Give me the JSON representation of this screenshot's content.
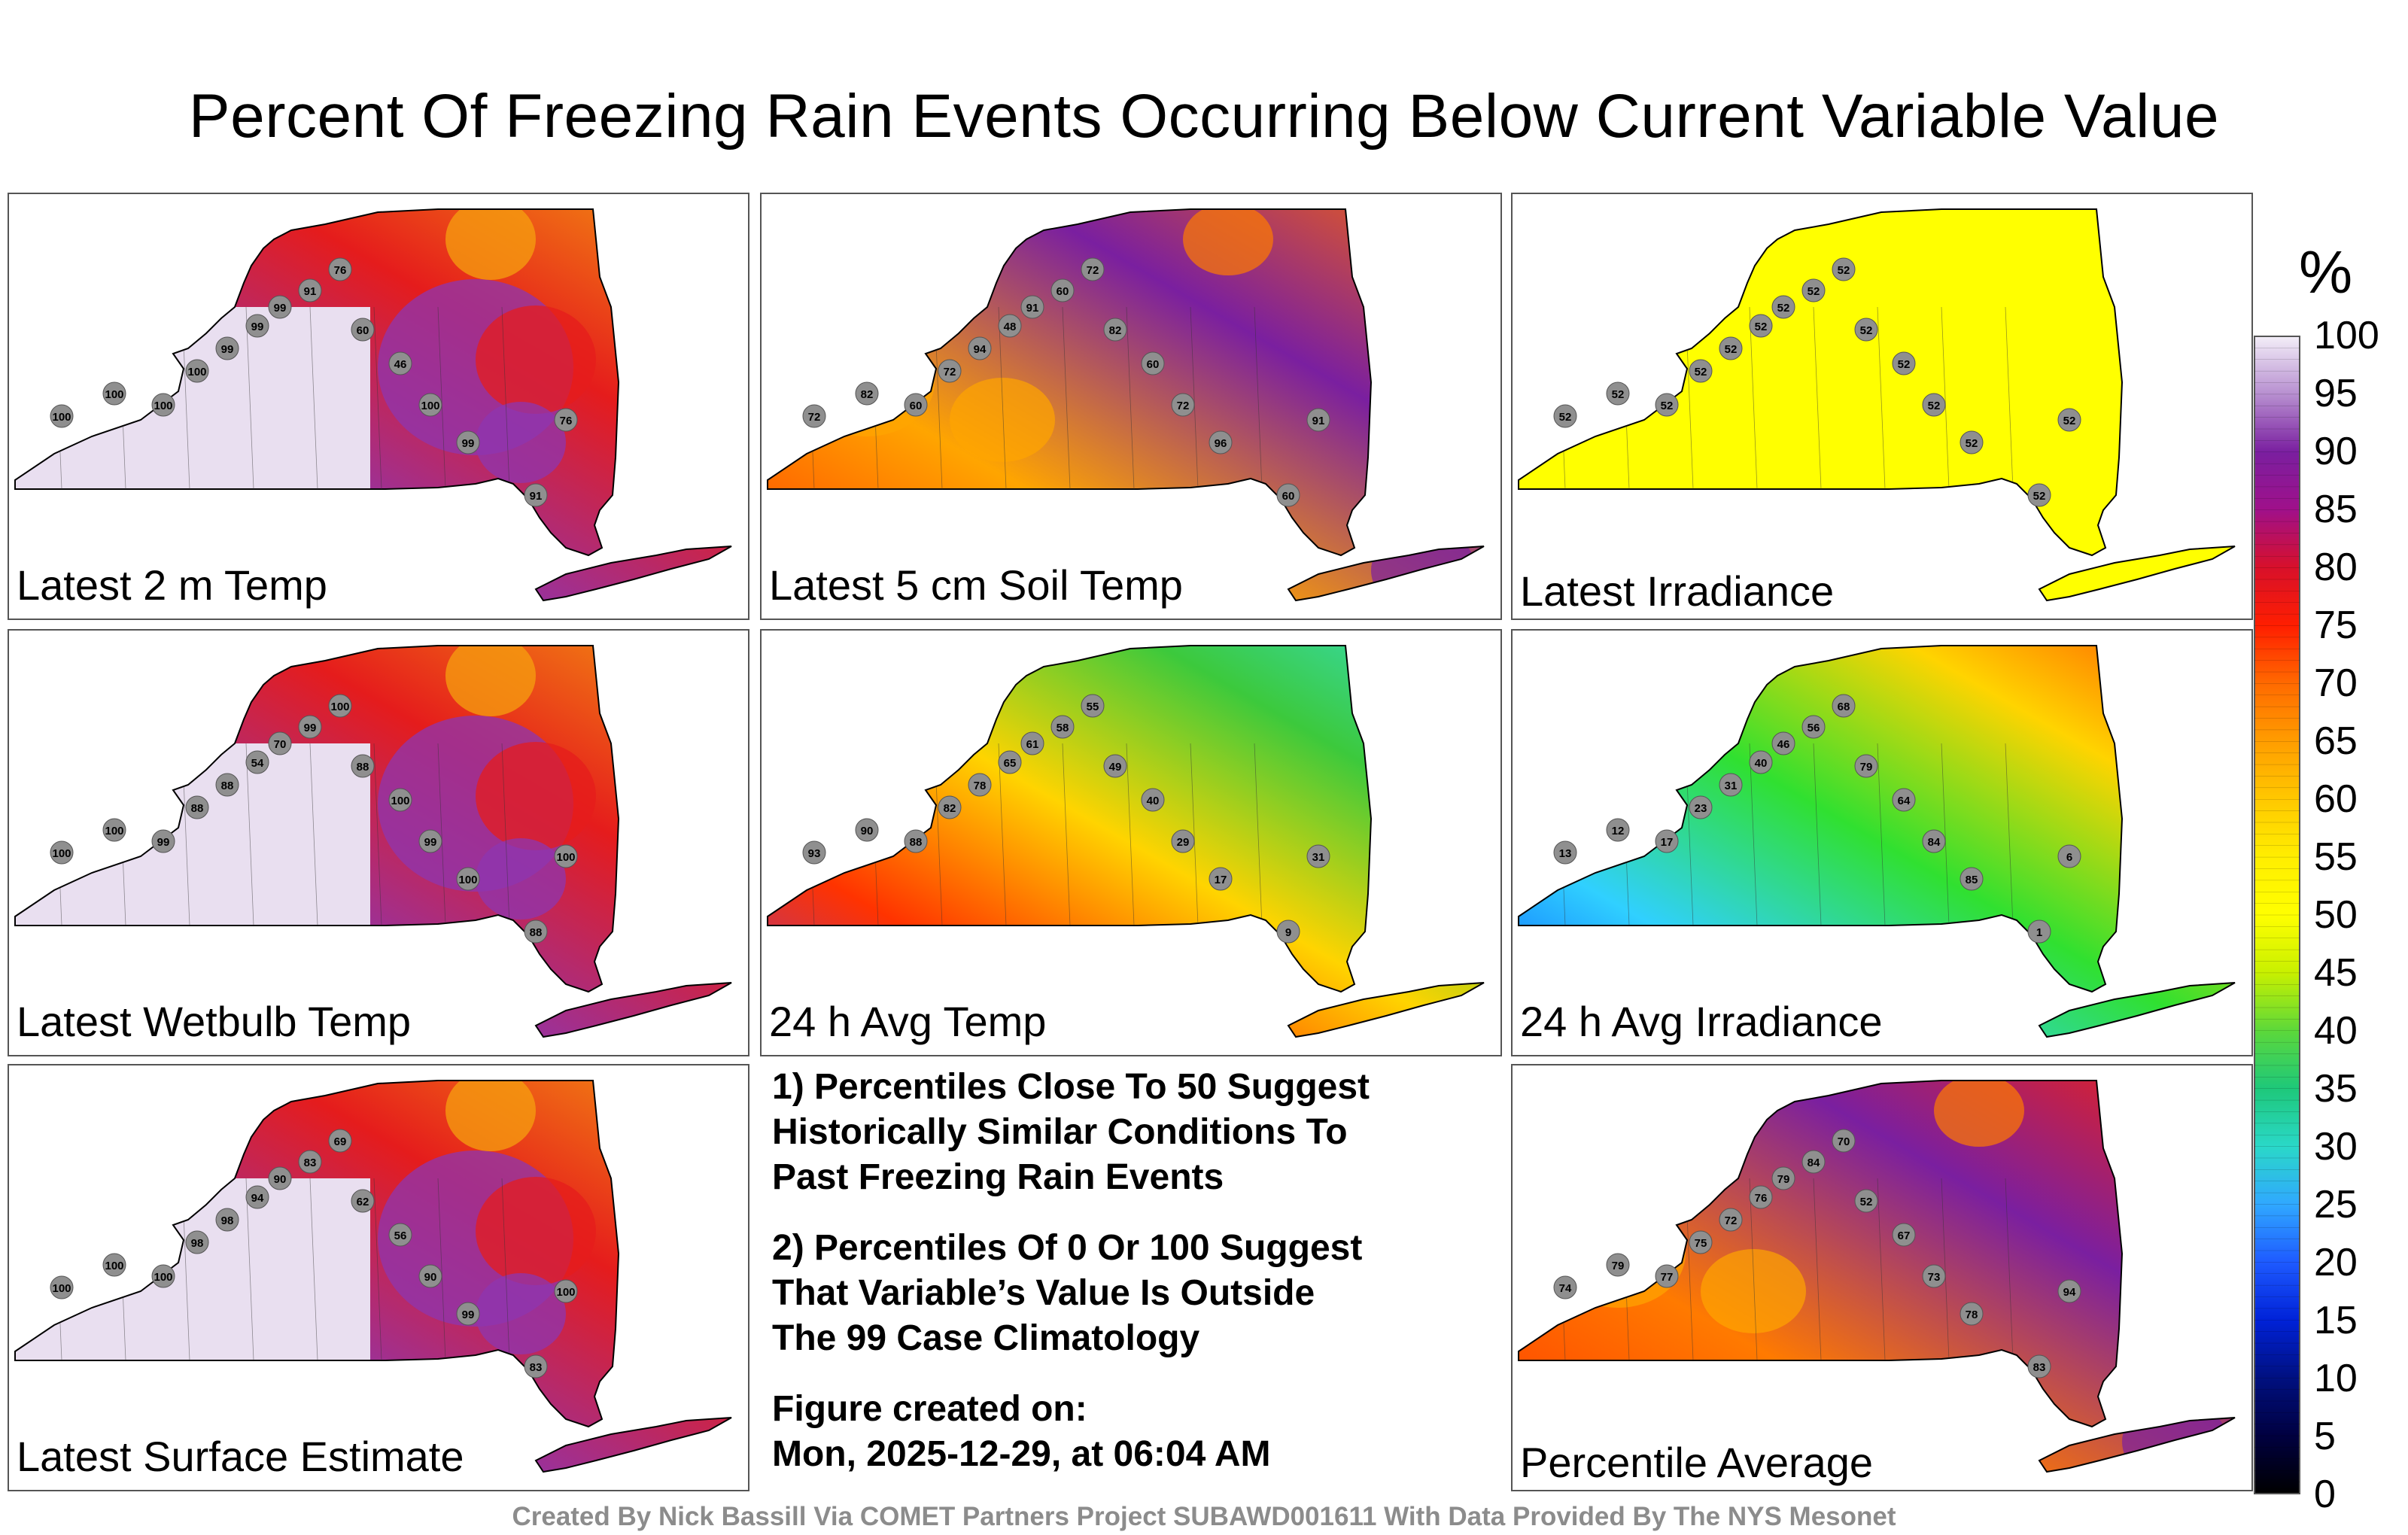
{
  "title": "Percent Of Freezing Rain Events Occurring Below Current Variable Value",
  "panels": [
    {
      "label": "Latest 2 m Temp",
      "scheme": "high",
      "colors": [
        "#e9dff0",
        "#8d35b0",
        "#e51c1c",
        "#f6a00f"
      ],
      "stations": [
        "100",
        "100",
        "100",
        "100",
        "99",
        "99",
        "99",
        "91",
        "76",
        "60",
        "46",
        "100",
        "99",
        "91",
        "76"
      ]
    },
    {
      "label": "Latest 5 cm Soil Temp",
      "scheme": "mixed",
      "colors": [
        "#ff3300",
        "#ffa500",
        "#7a1fa0",
        "#ff6a00"
      ],
      "stations": [
        "72",
        "82",
        "60",
        "72",
        "94",
        "48",
        "91",
        "60",
        "72",
        "82",
        "60",
        "72",
        "96",
        "60",
        "91"
      ]
    },
    {
      "label": "Latest Irradiance",
      "scheme": "flat",
      "colors": [
        "#ffff00"
      ],
      "stations": [
        "52",
        "52",
        "52",
        "52",
        "52",
        "52",
        "52",
        "52",
        "52",
        "52",
        "52",
        "52",
        "52",
        "52",
        "52"
      ]
    },
    {
      "label": "Latest Wetbulb Temp",
      "scheme": "high",
      "colors": [
        "#e9dff0",
        "#8d35b0",
        "#e51c1c",
        "#f6a00f"
      ],
      "stations": [
        "100",
        "100",
        "99",
        "88",
        "88",
        "54",
        "70",
        "99",
        "100",
        "88",
        "100",
        "99",
        "100",
        "88",
        "100"
      ]
    },
    {
      "label": "24 h Avg Temp",
      "scheme": "gradient",
      "colors": [
        "#8d35b0",
        "#ff3300",
        "#ffd400",
        "#3cc93c",
        "#35e0d0"
      ],
      "stations": [
        "93",
        "90",
        "88",
        "82",
        "78",
        "65",
        "61",
        "58",
        "55",
        "49",
        "40",
        "29",
        "17",
        "9",
        "31"
      ]
    },
    {
      "label": "24 h Avg Irradiance",
      "scheme": "gradient",
      "colors": [
        "#0044ff",
        "#30d0ff",
        "#30e030",
        "#ffd400",
        "#ff4400"
      ],
      "stations": [
        "13",
        "12",
        "17",
        "23",
        "31",
        "40",
        "46",
        "56",
        "68",
        "79",
        "64",
        "84",
        "85",
        "1",
        "6"
      ]
    },
    {
      "label": "Latest Surface Estimate",
      "scheme": "high",
      "colors": [
        "#e9dff0",
        "#8d35b0",
        "#e51c1c",
        "#f6a00f"
      ],
      "stations": [
        "100",
        "100",
        "100",
        "98",
        "98",
        "94",
        "90",
        "83",
        "69",
        "62",
        "56",
        "90",
        "99",
        "83",
        "100"
      ]
    },
    {
      "label": "Percentile Average",
      "scheme": "mixed",
      "colors": [
        "#ff3300",
        "#ff7a00",
        "#7a1fa0",
        "#ff2200"
      ],
      "stations": [
        "74",
        "79",
        "77",
        "75",
        "72",
        "76",
        "79",
        "84",
        "70",
        "52",
        "67",
        "73",
        "78",
        "83",
        "94"
      ]
    }
  ],
  "notes": {
    "line1": "1) Percentiles Close To 50 Suggest",
    "line2": "Historically Similar Conditions To",
    "line3": "Past Freezing Rain Events",
    "line4": "2) Percentiles Of 0 Or 100 Suggest",
    "line5": "That Variable’s Value Is Outside",
    "line6": "The 99 Case Climatology",
    "line7": "Figure created on:",
    "line8": "Mon, 2025-12-29, at 06:04 AM"
  },
  "colorbar": {
    "unit": "%",
    "ticks": [
      "100",
      "95",
      "90",
      "85",
      "80",
      "75",
      "70",
      "65",
      "60",
      "55",
      "50",
      "45",
      "40",
      "35",
      "30",
      "25",
      "20",
      "15",
      "10",
      "5",
      "0"
    ],
    "stops": [
      "#f3eef8",
      "#b78fd0",
      "#7a1fa0",
      "#a0108a",
      "#d8102a",
      "#ff1e00",
      "#ff6a00",
      "#ff9d00",
      "#ffc800",
      "#ffee00",
      "#ffff00",
      "#c8f000",
      "#5cd83a",
      "#1ec87a",
      "#2ad8c8",
      "#30a8ff",
      "#1e5aff",
      "#0022d8",
      "#001080",
      "#000040",
      "#000000"
    ]
  },
  "credit": "Created By Nick Bassill Via COMET Partners Project SUBAWD001611 With Data Provided By The NYS Mesonet"
}
